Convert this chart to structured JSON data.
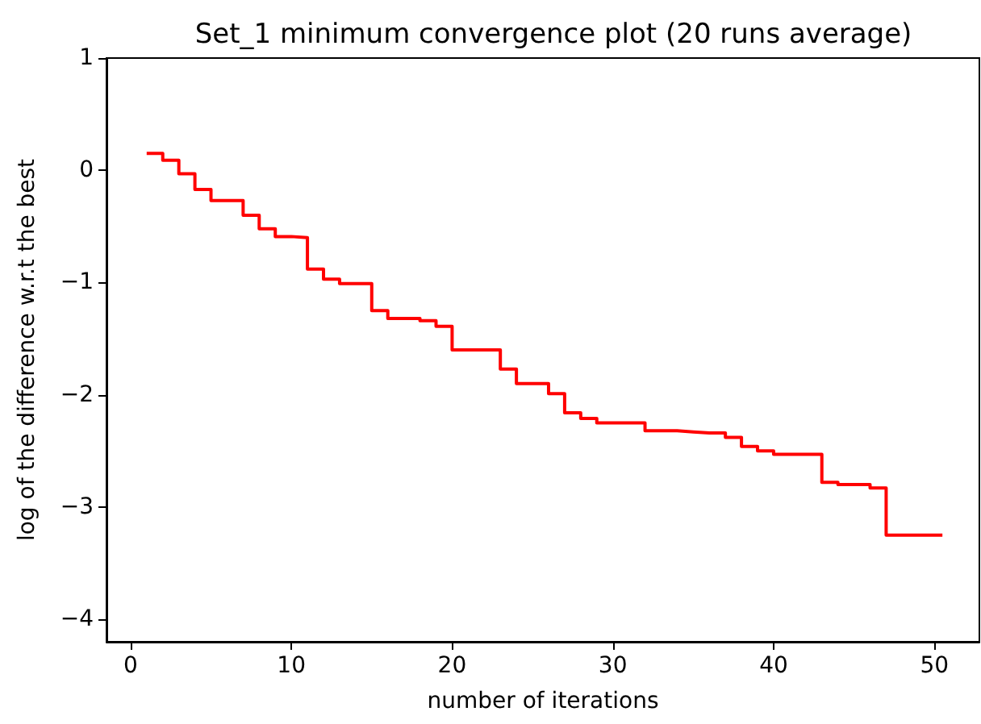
{
  "chart_data": {
    "type": "step",
    "title": "Set_1 minimum convergence plot (20 runs average)",
    "xlabel": "number of iterations",
    "ylabel": "log of the difference w.r.t the best",
    "x": [
      1,
      2,
      3,
      4,
      5,
      6,
      7,
      8,
      9,
      10,
      11,
      12,
      13,
      14,
      15,
      16,
      17,
      18,
      19,
      20,
      21,
      22,
      23,
      24,
      25,
      26,
      27,
      28,
      29,
      30,
      31,
      32,
      33,
      34,
      35,
      36,
      37,
      38,
      39,
      40,
      41,
      42,
      43,
      44,
      45,
      46,
      47,
      48,
      49,
      50,
      50.5
    ],
    "series": [
      {
        "color": "#ff0000",
        "values": [
          0.15,
          0.09,
          -0.03,
          -0.17,
          -0.27,
          -0.27,
          -0.4,
          -0.52,
          -0.59,
          -0.6,
          -0.88,
          -0.97,
          -1.01,
          -1.01,
          -1.25,
          -1.32,
          -1.32,
          -1.34,
          -1.39,
          -1.6,
          -1.6,
          -1.6,
          -1.77,
          -1.9,
          -1.9,
          -1.99,
          -2.16,
          -2.21,
          -2.25,
          -2.25,
          -2.25,
          -2.32,
          -2.32,
          -2.33,
          -2.34,
          -2.34,
          -2.38,
          -2.46,
          -2.5,
          -2.53,
          -2.53,
          -2.53,
          -2.78,
          -2.8,
          -2.8,
          -2.83,
          -3.25,
          -3.25,
          -3.25,
          -3.25,
          -3.25
        ]
      }
    ],
    "xlim": [
      -1.5,
      52.8
    ],
    "xticks": [
      0,
      10,
      20,
      30,
      40,
      50
    ],
    "ylim": [
      -4.2,
      1
    ],
    "yticks": [
      -4,
      -3,
      -2,
      -1,
      0,
      1
    ],
    "marker": "none",
    "line_style": "solid"
  }
}
